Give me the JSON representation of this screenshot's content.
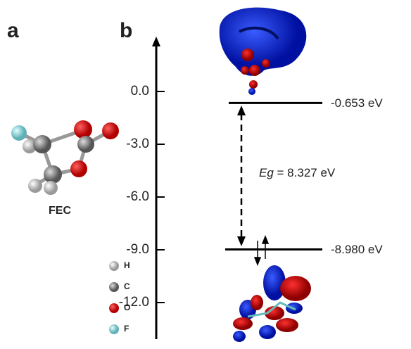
{
  "chart_data": {
    "type": "energy-levels",
    "panel_labels": [
      "a",
      "b"
    ],
    "molecule_label": "FEC",
    "atom_legend": [
      "H",
      "C",
      "O",
      "F"
    ],
    "ylim": [
      -14,
      3
    ],
    "yticks": [
      {
        "value": 0,
        "label": "0.0"
      },
      {
        "value": -3,
        "label": "-3.0"
      },
      {
        "value": -6,
        "label": "-6.0"
      },
      {
        "value": -9,
        "label": "-9.0"
      },
      {
        "value": -12,
        "label": "-12.0"
      }
    ],
    "values": [
      -0.653,
      -8.98
    ],
    "value_labels": [
      "-0.653 eV",
      "-8.980 eV"
    ],
    "annotation": {
      "symbol": "Eg",
      "text": "= 8.327 eV"
    },
    "color": "#000000"
  }
}
